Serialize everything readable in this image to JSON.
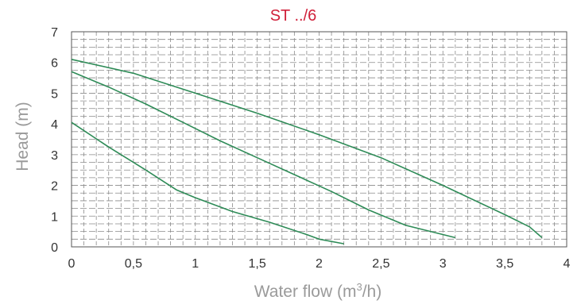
{
  "chart_data": {
    "type": "line",
    "title": "ST ../6",
    "xlabel_main": "Water flow (m",
    "xlabel_sup": "3",
    "xlabel_tail": "/h)",
    "ylabel": "Head (m)",
    "xlim": [
      0,
      4
    ],
    "ylim": [
      0,
      7
    ],
    "x_ticks": [
      0,
      0.5,
      1,
      1.5,
      2,
      2.5,
      3,
      3.5,
      4
    ],
    "x_tick_labels": [
      "0",
      "0,5",
      "1",
      "1,5",
      "2",
      "2,5",
      "3",
      "3,5",
      "4"
    ],
    "y_ticks": [
      0,
      1,
      2,
      3,
      4,
      5,
      6,
      7
    ],
    "y_tick_labels": [
      "0",
      "1",
      "2",
      "3",
      "4",
      "5",
      "6",
      "7"
    ],
    "grid": true,
    "grid_style": "dashed",
    "series": [
      {
        "color": "#2e8b57",
        "x": [
          0,
          0.3,
          0.6,
          0.85,
          1.0,
          1.3,
          1.6,
          1.9,
          2.0,
          2.2
        ],
        "y": [
          4.05,
          3.25,
          2.5,
          1.85,
          1.6,
          1.15,
          0.8,
          0.4,
          0.25,
          0.1
        ]
      },
      {
        "color": "#2e8b57",
        "x": [
          0,
          0.3,
          0.6,
          0.9,
          1.2,
          1.5,
          1.8,
          2.1,
          2.4,
          2.7,
          3.1
        ],
        "y": [
          5.7,
          5.2,
          4.65,
          4.05,
          3.45,
          2.9,
          2.35,
          1.8,
          1.2,
          0.7,
          0.3
        ]
      },
      {
        "color": "#2e8b57",
        "x": [
          0,
          0.5,
          1.0,
          1.5,
          2.0,
          2.5,
          3.0,
          3.5,
          3.7,
          3.8
        ],
        "y": [
          6.1,
          5.65,
          5.0,
          4.35,
          3.65,
          2.9,
          2.0,
          1.05,
          0.65,
          0.3
        ]
      }
    ]
  }
}
